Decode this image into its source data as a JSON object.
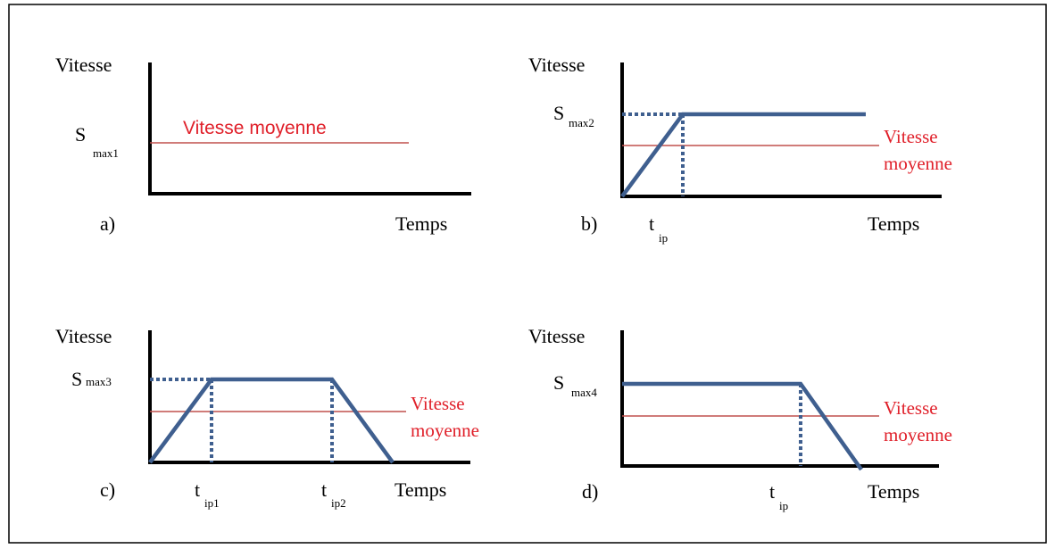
{
  "panels": [
    {
      "label": "a)",
      "y_label": "Vitesse",
      "x_label": "Temps",
      "s_label": {
        "main": "S",
        "sub": "max1"
      },
      "avg_label": [
        "Vitesse moyenne"
      ],
      "t_labels": []
    },
    {
      "label": "b)",
      "y_label": "Vitesse",
      "x_label": "Temps",
      "s_label": {
        "main": "S",
        "sub": "max2"
      },
      "avg_label": [
        "Vitesse",
        "moyenne"
      ],
      "t_labels": [
        {
          "main": "t",
          "sub": "ip"
        }
      ]
    },
    {
      "label": "c)",
      "y_label": "Vitesse",
      "x_label": "Temps",
      "s_label": {
        "main": "S",
        "sub": "max3"
      },
      "avg_label": [
        "Vitesse",
        "moyenne"
      ],
      "t_labels": [
        {
          "main": "t",
          "sub": "ip1"
        },
        {
          "main": "t",
          "sub": "ip2"
        }
      ]
    },
    {
      "label": "d)",
      "y_label": "Vitesse",
      "x_label": "Temps",
      "s_label": {
        "main": "S",
        "sub": "max4"
      },
      "avg_label": [
        "Vitesse",
        "moyenne"
      ],
      "t_labels": [
        {
          "main": "t",
          "sub": "ip"
        }
      ]
    }
  ]
}
